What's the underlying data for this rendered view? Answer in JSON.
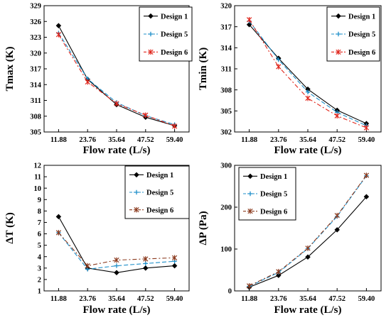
{
  "chart_data": [
    {
      "type": "line",
      "x": [
        "11.88",
        "23.76",
        "35.64",
        "47.52",
        "59.40"
      ],
      "xlabel": "Flow rate (L/s)",
      "ylabel": "Tmax (K)",
      "ylim": [
        305,
        329
      ],
      "yticks": [
        "305",
        "308",
        "311",
        "314",
        "317",
        "320",
        "323",
        "326",
        "329"
      ],
      "legend": "top-right",
      "series": [
        {
          "name": "Design 1",
          "color": "#000000",
          "marker": "diamond",
          "dash": "solid",
          "values": [
            325.2,
            315.0,
            310.2,
            307.8,
            306.2
          ]
        },
        {
          "name": "Design 5",
          "color": "#1f8fc9",
          "marker": "plus",
          "dash": "dash",
          "values": [
            323.8,
            315.1,
            310.6,
            308.1,
            306.4
          ]
        },
        {
          "name": "Design 6",
          "color": "#e0261c",
          "marker": "star",
          "dash": "dashdot",
          "values": [
            323.5,
            314.5,
            310.4,
            308.2,
            306.1
          ]
        }
      ]
    },
    {
      "type": "line",
      "x": [
        "11.88",
        "23.76",
        "35.64",
        "47.52",
        "59.40"
      ],
      "xlabel": "Flow rate (L/s)",
      "ylabel": "Tmin (K)",
      "ylim": [
        302,
        320
      ],
      "yticks": [
        "302",
        "305",
        "308",
        "311",
        "314",
        "317",
        "320"
      ],
      "legend": "top-right",
      "series": [
        {
          "name": "Design 1",
          "color": "#000000",
          "marker": "diamond",
          "dash": "solid",
          "values": [
            317.3,
            312.5,
            308.1,
            305.1,
            303.2
          ]
        },
        {
          "name": "Design 5",
          "color": "#1f8fc9",
          "marker": "plus",
          "dash": "dash",
          "values": [
            317.8,
            312.3,
            307.7,
            304.8,
            302.9
          ]
        },
        {
          "name": "Design 6",
          "color": "#e0261c",
          "marker": "star",
          "dash": "dashdot",
          "values": [
            318.0,
            311.3,
            306.8,
            304.3,
            302.6
          ]
        }
      ]
    },
    {
      "type": "line",
      "x": [
        "11.88",
        "23.76",
        "35.64",
        "47.52",
        "59.40"
      ],
      "xlabel": "Flow rate (L/s)",
      "ylabel": "ΔT (K)",
      "ylim": [
        1,
        12
      ],
      "yticks": [
        "1",
        "2",
        "3",
        "4",
        "5",
        "6",
        "7",
        "8",
        "9",
        "10",
        "11",
        "12"
      ],
      "legend": "top-right",
      "series": [
        {
          "name": "Design 1",
          "color": "#000000",
          "marker": "diamond",
          "dash": "solid",
          "values": [
            7.5,
            3.0,
            2.6,
            3.0,
            3.2
          ]
        },
        {
          "name": "Design 5",
          "color": "#1f8fc9",
          "marker": "plus",
          "dash": "dash",
          "values": [
            6.1,
            2.9,
            3.2,
            3.4,
            3.6
          ]
        },
        {
          "name": "Design 6",
          "color": "#8b3a1e",
          "marker": "star",
          "dash": "dashdot",
          "values": [
            6.1,
            3.2,
            3.7,
            3.8,
            3.9
          ]
        }
      ]
    },
    {
      "type": "line",
      "x": [
        "11.88",
        "23.76",
        "35.64",
        "47.52",
        "59.40"
      ],
      "xlabel": "Flow rate (L/s)",
      "ylabel": "ΔP (Pa)",
      "ylim": [
        0,
        300
      ],
      "yticks": [
        "0",
        "100",
        "200",
        "300"
      ],
      "legend": "top-left",
      "series": [
        {
          "name": "Design 1",
          "color": "#000000",
          "marker": "diamond",
          "dash": "solid",
          "values": [
            9,
            37,
            81,
            146,
            225
          ]
        },
        {
          "name": "Design 5",
          "color": "#1f8fc9",
          "marker": "plus",
          "dash": "dash",
          "values": [
            11,
            44,
            101,
            178,
            275
          ]
        },
        {
          "name": "Design 6",
          "color": "#8b3a1e",
          "marker": "star",
          "dash": "dashdot",
          "values": [
            12,
            46,
            102,
            180,
            276
          ]
        }
      ]
    }
  ]
}
